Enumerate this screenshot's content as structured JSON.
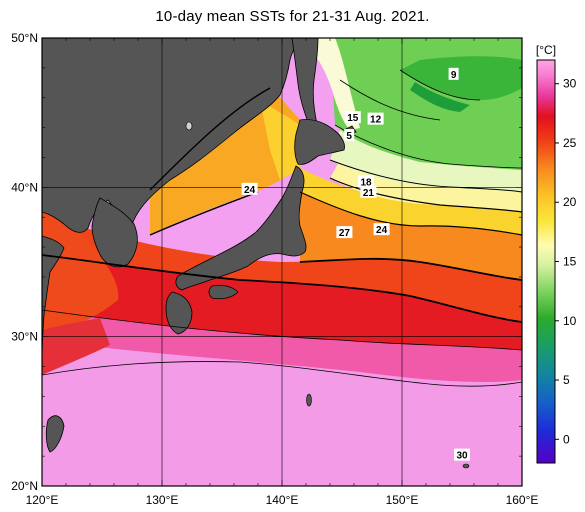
{
  "title": "10-day mean SSTs for 21-31 Aug. 2021.",
  "lon_ticks": [
    {
      "value": 120,
      "label": "120°E"
    },
    {
      "value": 130,
      "label": "130°E"
    },
    {
      "value": 140,
      "label": "140°E"
    },
    {
      "value": 150,
      "label": "150°E"
    },
    {
      "value": 160,
      "label": "160°E"
    }
  ],
  "lat_ticks": [
    {
      "value": 50,
      "label": "50°N"
    },
    {
      "value": 40,
      "label": "40°N"
    },
    {
      "value": 30,
      "label": "30°N"
    },
    {
      "value": 20,
      "label": "20°N"
    }
  ],
  "colorbar": {
    "unit": "[°C]",
    "ticks": [
      30,
      25,
      20,
      15,
      10,
      5,
      0
    ],
    "min": -2,
    "max": 32
  },
  "isotherm_labels": [
    {
      "text": "9",
      "lon": 154.3,
      "lat": 47.6
    },
    {
      "text": "15",
      "lon": 145.9,
      "lat": 44.7
    },
    {
      "text": "12",
      "lon": 147.8,
      "lat": 44.6
    },
    {
      "text": "5",
      "lon": 145.6,
      "lat": 43.5
    },
    {
      "text": "18",
      "lon": 147.0,
      "lat": 40.4
    },
    {
      "text": "21",
      "lon": 147.2,
      "lat": 39.7
    },
    {
      "text": "24",
      "lon": 137.3,
      "lat": 39.9
    },
    {
      "text": "27",
      "lon": 145.2,
      "lat": 37.0
    },
    {
      "text": "24",
      "lon": 148.3,
      "lat": 37.2
    },
    {
      "text": "30",
      "lon": 155.0,
      "lat": 22.1
    }
  ],
  "colors": {
    "land": "#555555",
    "grid": "#000000"
  }
}
